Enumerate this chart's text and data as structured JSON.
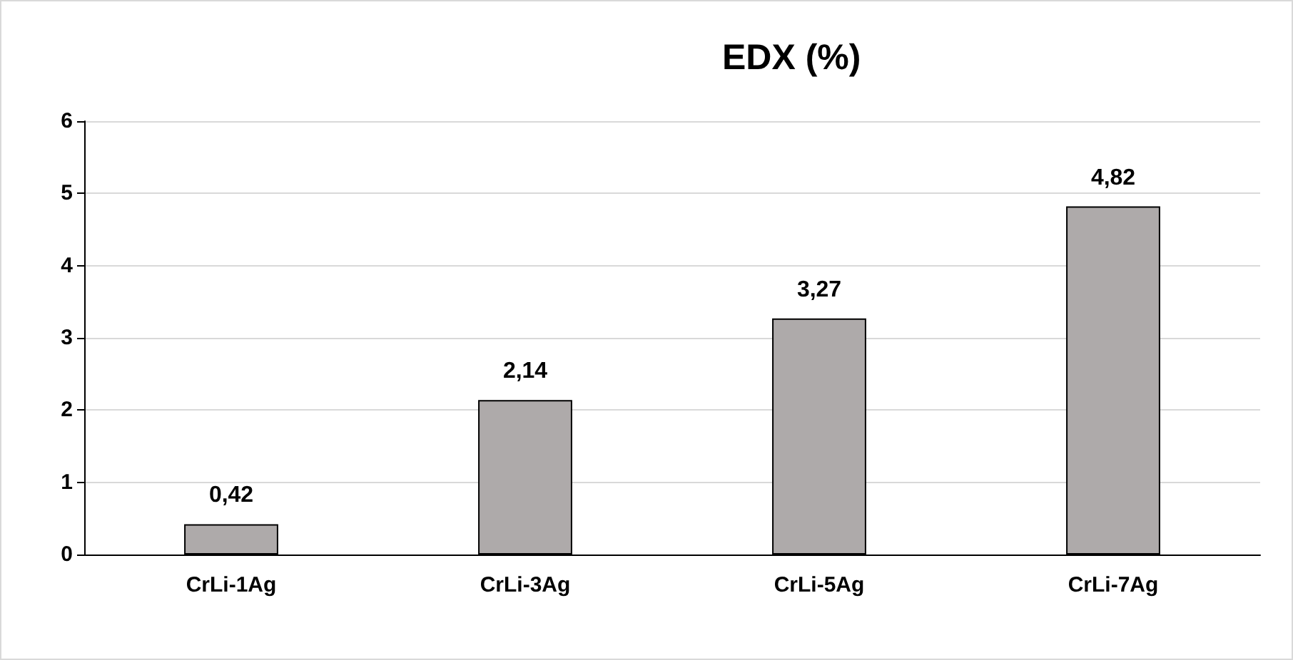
{
  "chart_data": {
    "type": "bar",
    "title": "EDX (%)",
    "categories": [
      "CrLi-1Ag",
      "CrLi-3Ag",
      "CrLi-5Ag",
      "CrLi-7Ag"
    ],
    "values": [
      0.42,
      2.14,
      3.27,
      4.82
    ],
    "value_labels": [
      "0,42",
      "2,14",
      "3,27",
      "4,82"
    ],
    "color": "#aeaaaa",
    "ylim": [
      0,
      6
    ],
    "yticks": [
      0,
      1,
      2,
      3,
      4,
      5,
      6
    ],
    "grid": "y"
  }
}
